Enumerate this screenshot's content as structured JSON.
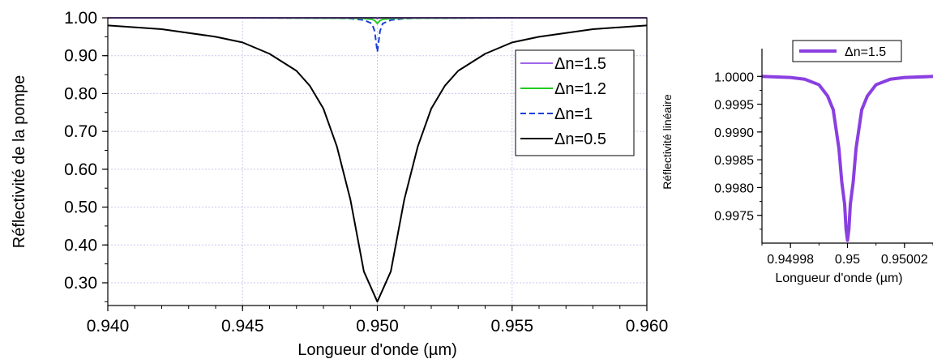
{
  "chart_data": [
    {
      "type": "line",
      "xlabel": "Longueur d'onde (µm)",
      "ylabel": "Réflectivité de la pompe",
      "xlim": [
        0.94,
        0.96
      ],
      "ylim": [
        0.24,
        1.0
      ],
      "x_ticks": [
        0.94,
        0.945,
        0.95,
        0.955,
        0.96
      ],
      "x_tick_labels": [
        "0.940",
        "0.945",
        "0.950",
        "0.955",
        "0.960"
      ],
      "y_ticks": [
        0.3,
        0.4,
        0.5,
        0.6,
        0.7,
        0.8,
        0.9,
        1.0
      ],
      "y_tick_labels": [
        "0.30",
        "0.40",
        "0.50",
        "0.60",
        "0.70",
        "0.80",
        "0.90",
        "1.00"
      ],
      "grid": true,
      "legend_position": "right",
      "series": [
        {
          "name": "Δn=1.5",
          "color": "#a066e8",
          "dash": "solid",
          "x": [
            0.94,
            0.945,
            0.949,
            0.9498,
            0.9499,
            0.94995,
            0.95,
            0.95005,
            0.9501,
            0.9502,
            0.951,
            0.955,
            0.96
          ],
          "y": [
            1.0,
            1.0,
            1.0,
            1.0,
            1.0,
            0.9999,
            0.9975,
            0.9999,
            1.0,
            1.0,
            1.0,
            1.0,
            1.0
          ]
        },
        {
          "name": "Δn=1.2",
          "color": "#22cc22",
          "dash": "solid",
          "x": [
            0.94,
            0.945,
            0.949,
            0.9495,
            0.9498,
            0.9499,
            0.95,
            0.9501,
            0.9502,
            0.9505,
            0.951,
            0.955,
            0.96
          ],
          "y": [
            1.0,
            1.0,
            0.999,
            0.998,
            0.996,
            0.993,
            0.985,
            0.993,
            0.996,
            0.998,
            0.999,
            1.0,
            1.0
          ]
        },
        {
          "name": "Δn=1",
          "color": "#1a3fd6",
          "dash": "dashed",
          "x": [
            0.94,
            0.945,
            0.9485,
            0.949,
            0.9495,
            0.9498,
            0.9499,
            0.95,
            0.9501,
            0.9502,
            0.9505,
            0.951,
            0.9515,
            0.955,
            0.96
          ],
          "y": [
            1.0,
            1.0,
            0.999,
            0.998,
            0.994,
            0.985,
            0.965,
            0.91,
            0.965,
            0.985,
            0.994,
            0.998,
            0.999,
            1.0,
            1.0
          ]
        },
        {
          "name": "Δn=0.5",
          "color": "#000000",
          "dash": "solid",
          "x": [
            0.94,
            0.942,
            0.944,
            0.945,
            0.946,
            0.947,
            0.9475,
            0.948,
            0.9485,
            0.949,
            0.9495,
            0.95,
            0.9505,
            0.951,
            0.9515,
            0.952,
            0.9525,
            0.953,
            0.954,
            0.955,
            0.956,
            0.958,
            0.96
          ],
          "y": [
            0.98,
            0.97,
            0.95,
            0.935,
            0.905,
            0.86,
            0.82,
            0.76,
            0.66,
            0.52,
            0.33,
            0.25,
            0.33,
            0.52,
            0.66,
            0.76,
            0.82,
            0.86,
            0.905,
            0.935,
            0.95,
            0.97,
            0.98
          ]
        }
      ]
    },
    {
      "type": "line",
      "xlabel": "Longueur d'onde (µm)",
      "ylabel": "Réflectivité linéaire",
      "xlim": [
        0.94997,
        0.95003
      ],
      "ylim": [
        0.997,
        1.0005
      ],
      "x_ticks": [
        0.94998,
        0.95,
        0.95002
      ],
      "x_tick_labels": [
        "0.94998",
        "0.95",
        "0.95002"
      ],
      "y_ticks": [
        0.9975,
        0.998,
        0.9985,
        0.999,
        0.9995,
        1.0
      ],
      "y_tick_labels": [
        "0.9975",
        "0.9980",
        "0.9985",
        "0.9990",
        "0.9995",
        "1.0000"
      ],
      "grid": false,
      "legend_position": "top",
      "series": [
        {
          "name": "Δn=1.5",
          "color": "#8a3fe0",
          "dash": "solid",
          "x": [
            0.94997,
            0.94998,
            0.949985,
            0.94999,
            0.949993,
            0.949995,
            0.949997,
            0.949998,
            0.949999,
            0.9499995,
            0.95,
            0.9500005,
            0.950001,
            0.950002,
            0.950003,
            0.950005,
            0.950007,
            0.95001,
            0.950015,
            0.95002,
            0.95003
          ],
          "y": [
            1.0,
            0.99998,
            0.99995,
            0.99985,
            0.99965,
            0.9994,
            0.9987,
            0.9981,
            0.9977,
            0.99725,
            0.99705,
            0.99725,
            0.9977,
            0.9981,
            0.9987,
            0.9994,
            0.99965,
            0.99985,
            0.99995,
            0.99998,
            1.0
          ]
        }
      ]
    }
  ]
}
